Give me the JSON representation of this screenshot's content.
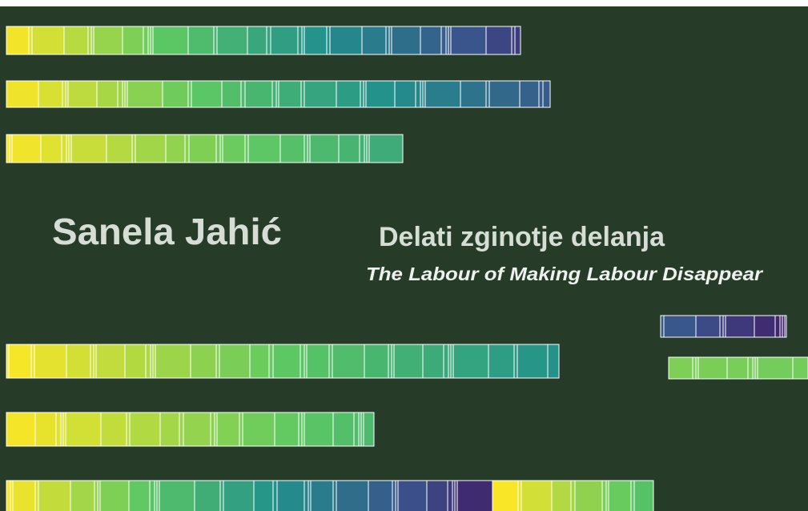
{
  "poster": {
    "artist": "Sanela Jahić",
    "title": "Delati zginotje delanja",
    "subtitle": "The Labour of Making Labour Disappear"
  }
}
